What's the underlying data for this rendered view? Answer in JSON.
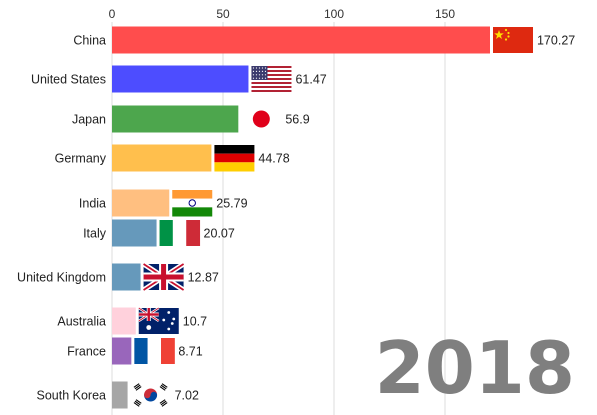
{
  "chart_data": {
    "type": "bar",
    "orientation": "horizontal",
    "title": "",
    "xlabel": "",
    "ylabel": "",
    "xlim": [
      0,
      180
    ],
    "x_ticks": [
      0,
      50,
      100,
      150
    ],
    "grid": true,
    "year": "2018",
    "categories": [
      "China",
      "United States",
      "Japan",
      "Germany",
      "India",
      "Italy",
      "United Kingdom",
      "Australia",
      "France",
      "South Korea"
    ],
    "values": [
      170.27,
      61.47,
      56.9,
      44.78,
      25.79,
      20.07,
      12.87,
      10.7,
      8.71,
      7.02
    ],
    "value_labels": [
      "170.27",
      "61.47",
      "56.9",
      "44.78",
      "25.79",
      "20.07",
      "12.87",
      "10.7",
      "8.71",
      "7.02"
    ],
    "colors": [
      "#ff4d4d",
      "#4d4dff",
      "#4da64d",
      "#ffbf4d",
      "#ffbf80",
      "#6699bb",
      "#6699bb",
      "#ffd1dc",
      "#9966bb",
      "#a6a6a6"
    ],
    "flags": [
      "china-flag-icon",
      "usa-flag-icon",
      "japan-flag-icon",
      "germany-flag-icon",
      "india-flag-icon",
      "italy-flag-icon",
      "uk-flag-icon",
      "australia-flag-icon",
      "france-flag-icon",
      "south-korea-flag-icon"
    ]
  }
}
